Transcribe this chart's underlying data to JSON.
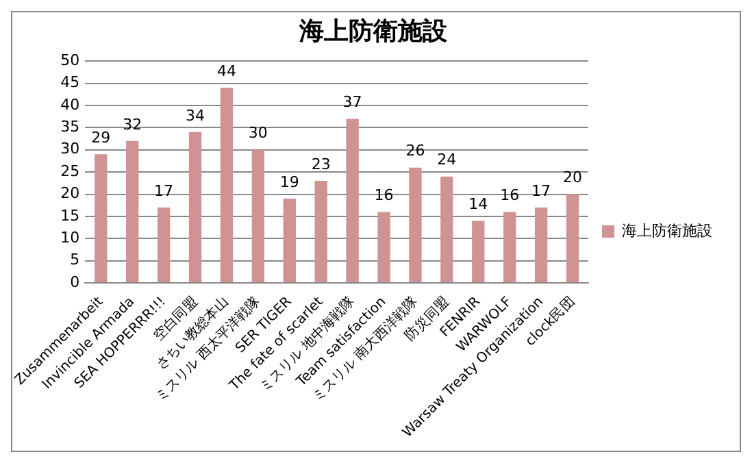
{
  "chart_data": {
    "type": "bar",
    "title": "海上防衛施設",
    "categories": [
      "Zusammenarbeit",
      "Invincible Armada",
      "SEA HOPPERRR!!!",
      "空白同盟",
      "さちい教総本山",
      "ミスリル 西太平洋戦隊",
      "SER TIGER",
      "The fate of scarlet",
      "ミスリル 地中海戦隊",
      "Team satisfaction",
      "ミスリル 南大西洋戦隊",
      "防災同盟",
      "FENRIR",
      "WARWOLF",
      "Warsaw Treaty Organization",
      "clock民団"
    ],
    "series": [
      {
        "name": "海上防衛施設",
        "color": "#d09393",
        "values": [
          29,
          32,
          17,
          34,
          44,
          30,
          19,
          23,
          37,
          16,
          26,
          24,
          14,
          16,
          17,
          20
        ]
      }
    ],
    "ylim": [
      0,
      50
    ],
    "yticks": [
      0,
      5,
      10,
      15,
      20,
      25,
      30,
      35,
      40,
      45,
      50
    ],
    "grid": "y",
    "legend": "right",
    "data_labels": true
  }
}
